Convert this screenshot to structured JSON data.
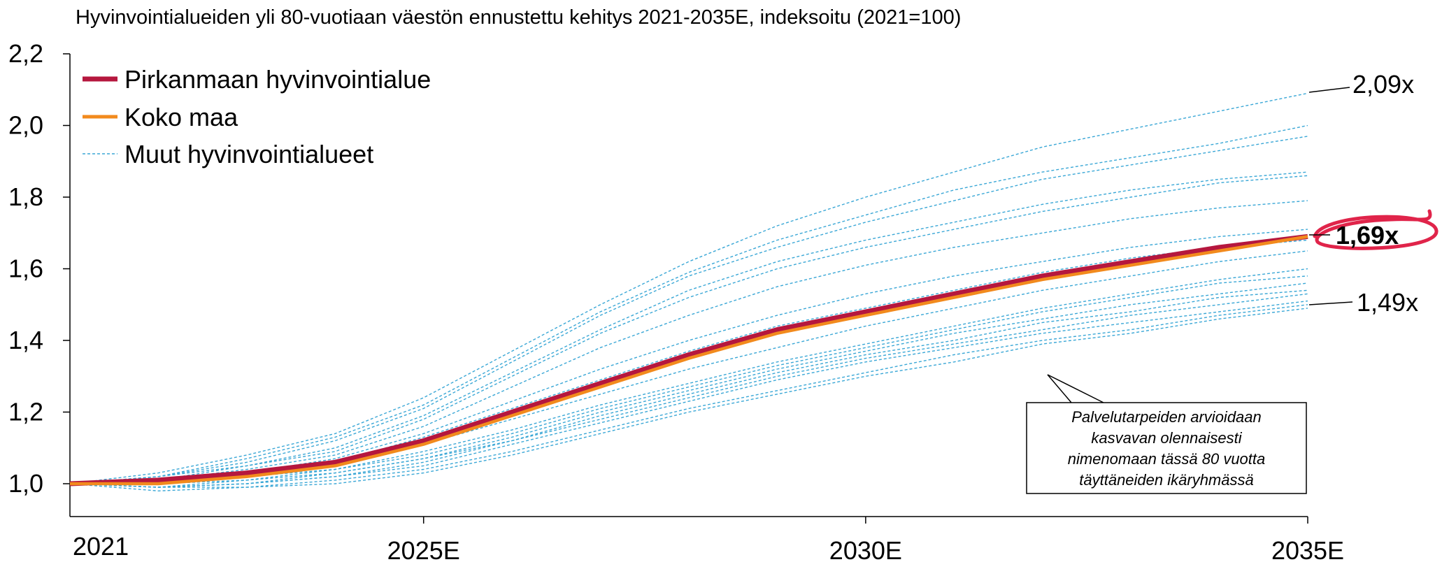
{
  "colors": {
    "pirkanmaa": "#b5173e",
    "koko_maa": "#f28a1d",
    "muut": "#3aa7d6",
    "highlight_ring": "#e0244a",
    "axis": "#000000"
  },
  "chart_data": {
    "type": "line",
    "title": "Hyvinvointialueiden yli 80-vuotiaan väestön ennustettu kehitys 2021-2035E, indeksoitu (2021=100)",
    "xlabel": "",
    "ylabel": "",
    "x": [
      2021,
      2022,
      2023,
      2024,
      2025,
      2026,
      2027,
      2028,
      2029,
      2030,
      2031,
      2032,
      2033,
      2034,
      2035
    ],
    "x_tick_labels": [
      {
        "x": 2021,
        "label": "2021"
      },
      {
        "x": 2025,
        "label": "2025E"
      },
      {
        "x": 2030,
        "label": "2030E"
      },
      {
        "x": 2035,
        "label": "2035E"
      }
    ],
    "ylim": [
      1.0,
      2.2
    ],
    "y_ticks": [
      "1,0",
      "1,2",
      "1,4",
      "1,6",
      "1,8",
      "2,0",
      "2,2"
    ],
    "y_tick_values": [
      1.0,
      1.2,
      1.4,
      1.6,
      1.8,
      2.0,
      2.2
    ],
    "grid": false,
    "legend_position": "top-left",
    "series": [
      {
        "name": "Pirkanmaan hyvinvointialue",
        "style": "thick-solid",
        "color": "#b5173e",
        "values": [
          1.0,
          1.01,
          1.03,
          1.06,
          1.12,
          1.2,
          1.28,
          1.36,
          1.43,
          1.48,
          1.53,
          1.58,
          1.62,
          1.66,
          1.69
        ]
      },
      {
        "name": "Koko maa",
        "style": "solid",
        "color": "#f28a1d",
        "values": [
          1.0,
          1.0,
          1.02,
          1.05,
          1.11,
          1.19,
          1.27,
          1.35,
          1.42,
          1.47,
          1.52,
          1.57,
          1.61,
          1.65,
          1.69
        ]
      },
      {
        "name": "Muut hyvinvointialueet",
        "style": "dashed",
        "color": "#3aa7d6",
        "lines": [
          [
            1.0,
            1.03,
            1.08,
            1.14,
            1.24,
            1.37,
            1.5,
            1.62,
            1.72,
            1.8,
            1.87,
            1.94,
            1.99,
            2.04,
            2.09
          ],
          [
            1.0,
            1.02,
            1.07,
            1.13,
            1.22,
            1.35,
            1.48,
            1.59,
            1.68,
            1.75,
            1.82,
            1.87,
            1.91,
            1.95,
            2.0
          ],
          [
            1.0,
            1.02,
            1.06,
            1.12,
            1.21,
            1.34,
            1.47,
            1.58,
            1.66,
            1.73,
            1.79,
            1.85,
            1.89,
            1.93,
            1.97
          ],
          [
            1.0,
            1.02,
            1.05,
            1.1,
            1.19,
            1.31,
            1.43,
            1.54,
            1.62,
            1.68,
            1.73,
            1.78,
            1.82,
            1.85,
            1.87
          ],
          [
            1.0,
            1.01,
            1.05,
            1.09,
            1.18,
            1.3,
            1.42,
            1.52,
            1.6,
            1.66,
            1.71,
            1.76,
            1.8,
            1.84,
            1.86
          ],
          [
            1.0,
            1.01,
            1.04,
            1.08,
            1.16,
            1.27,
            1.38,
            1.47,
            1.55,
            1.61,
            1.66,
            1.7,
            1.74,
            1.77,
            1.79
          ],
          [
            1.0,
            1.01,
            1.03,
            1.07,
            1.14,
            1.23,
            1.32,
            1.4,
            1.47,
            1.53,
            1.58,
            1.62,
            1.66,
            1.69,
            1.71
          ],
          [
            1.0,
            1.0,
            1.03,
            1.06,
            1.13,
            1.21,
            1.29,
            1.37,
            1.44,
            1.49,
            1.54,
            1.59,
            1.63,
            1.66,
            1.68
          ],
          [
            1.0,
            1.0,
            1.02,
            1.05,
            1.11,
            1.18,
            1.25,
            1.32,
            1.38,
            1.44,
            1.49,
            1.54,
            1.58,
            1.62,
            1.65
          ],
          [
            1.0,
            1.0,
            1.02,
            1.04,
            1.09,
            1.15,
            1.22,
            1.28,
            1.34,
            1.39,
            1.44,
            1.49,
            1.53,
            1.57,
            1.6
          ],
          [
            1.0,
            1.0,
            1.01,
            1.04,
            1.08,
            1.14,
            1.21,
            1.27,
            1.33,
            1.38,
            1.43,
            1.48,
            1.52,
            1.56,
            1.58
          ],
          [
            1.0,
            0.99,
            1.01,
            1.03,
            1.07,
            1.13,
            1.2,
            1.26,
            1.32,
            1.37,
            1.42,
            1.46,
            1.5,
            1.53,
            1.56
          ],
          [
            1.0,
            0.99,
            1.0,
            1.03,
            1.07,
            1.12,
            1.19,
            1.25,
            1.31,
            1.36,
            1.4,
            1.45,
            1.48,
            1.52,
            1.54
          ],
          [
            1.0,
            0.99,
            1.0,
            1.02,
            1.06,
            1.12,
            1.18,
            1.24,
            1.3,
            1.35,
            1.39,
            1.43,
            1.47,
            1.5,
            1.53
          ],
          [
            1.0,
            0.99,
            1.0,
            1.02,
            1.05,
            1.11,
            1.17,
            1.23,
            1.29,
            1.34,
            1.38,
            1.42,
            1.45,
            1.48,
            1.51
          ],
          [
            1.0,
            0.99,
            0.99,
            1.01,
            1.04,
            1.09,
            1.15,
            1.21,
            1.26,
            1.31,
            1.36,
            1.4,
            1.43,
            1.47,
            1.5
          ],
          [
            1.0,
            0.98,
            0.99,
            1.0,
            1.03,
            1.08,
            1.14,
            1.2,
            1.25,
            1.3,
            1.34,
            1.39,
            1.42,
            1.46,
            1.49
          ]
        ]
      }
    ],
    "annotations": {
      "max_label": "2,09x",
      "pirkanmaa_label": "1,69x",
      "min_label": "1,49x",
      "callout_lines": [
        "Palvelutarpeiden arvioidaan",
        "kasvavan olennaisesti",
        "nimenomaan tässä 80 vuotta",
        "täyttäneiden ikäryhmässä"
      ]
    }
  }
}
